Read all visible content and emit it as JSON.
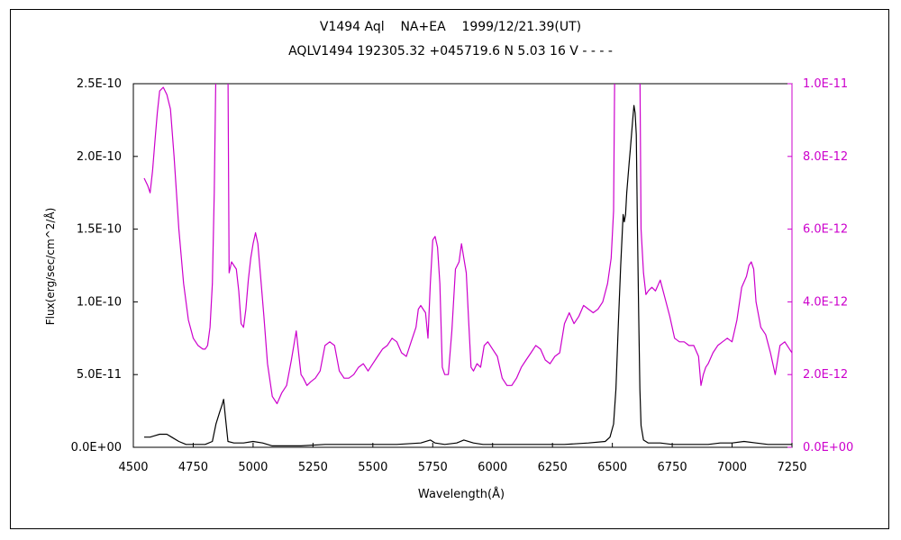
{
  "chart_data": {
    "type": "line",
    "title": "V1494 Aql    NA+EA    1999/12/21.39(UT)",
    "subtitle": "AQLV1494 192305.32 +045719.6 N 5.03 16 V - - - -",
    "xlabel": "Wavelength(Å)",
    "ylabel": "Flux(erg/sec/cm^2/Å)",
    "xlim": [
      4500,
      7250
    ],
    "ylim_left": [
      0,
      2.5e-10
    ],
    "ylim_right": [
      0,
      1e-11
    ],
    "x_ticks": [
      "4500",
      "4750",
      "5000",
      "5250",
      "5500",
      "5750",
      "6000",
      "6250",
      "6500",
      "6750",
      "7000",
      "7250"
    ],
    "y_ticks_left": [
      "0.0E+00",
      "5.0E-11",
      "1.0E-10",
      "1.5E-10",
      "2.0E-10",
      "2.5E-10"
    ],
    "y_ticks_right": [
      "0.0E+00",
      "2.0E-12",
      "4.0E-12",
      "6.0E-12",
      "8.0E-12",
      "1.0E-11"
    ],
    "grid": false,
    "colors": {
      "left_axis": "#000000",
      "right_axis": "#cc00cc"
    },
    "series": [
      {
        "axis": "left",
        "color": "#000000",
        "x": [
          4545,
          4570,
          4590,
          4610,
          4640,
          4660,
          4690,
          4720,
          4760,
          4800,
          4830,
          4845,
          4860,
          4870,
          4877,
          4885,
          4895,
          4920,
          4960,
          5000,
          5040,
          5080,
          5120,
          5200,
          5300,
          5400,
          5500,
          5600,
          5700,
          5740,
          5760,
          5800,
          5850,
          5880,
          5920,
          5960,
          6000,
          6100,
          6200,
          6300,
          6400,
          6470,
          6490,
          6505,
          6515,
          6525,
          6535,
          6545,
          6550,
          6555,
          6560,
          6565,
          6570,
          6575,
          6580,
          6585,
          6590,
          6595,
          6600,
          6605,
          6610,
          6615,
          6620,
          6630,
          6650,
          6700,
          6750,
          6800,
          6850,
          6900,
          6950,
          7000,
          7050,
          7100,
          7150,
          7200,
          7250
        ],
        "y": [
          7e-12,
          7e-12,
          8e-12,
          9e-12,
          9e-12,
          7e-12,
          4e-12,
          2e-12,
          2e-12,
          2e-12,
          4e-12,
          1.6e-11,
          2.4e-11,
          2.9e-11,
          3.3e-11,
          2e-11,
          4e-12,
          3e-12,
          3e-12,
          4e-12,
          3e-12,
          1e-12,
          1e-12,
          1e-12,
          2e-12,
          2e-12,
          2e-12,
          2e-12,
          3e-12,
          5e-12,
          3e-12,
          2e-12,
          3e-12,
          5e-12,
          3e-12,
          2e-12,
          2e-12,
          2e-12,
          2e-12,
          2e-12,
          3e-12,
          4e-12,
          7e-12,
          1.6e-11,
          4e-11,
          8.5e-11,
          1.25e-10,
          1.6e-10,
          1.55e-10,
          1.6e-10,
          1.75e-10,
          1.85e-10,
          1.95e-10,
          2.05e-10,
          2.15e-10,
          2.25e-10,
          2.35e-10,
          2.3e-10,
          2.15e-10,
          1.5e-10,
          9e-11,
          4e-11,
          1.5e-11,
          5e-12,
          3e-12,
          3e-12,
          2e-12,
          2e-12,
          2e-12,
          2e-12,
          3e-12,
          3e-12,
          4e-12,
          3e-12,
          2e-12,
          2e-12,
          2e-12
        ]
      },
      {
        "axis": "right",
        "color": "#cc00cc",
        "x": [
          4545,
          4560,
          4570,
          4580,
          4590,
          4600,
          4610,
          4625,
          4640,
          4655,
          4670,
          4690,
          4710,
          4730,
          4750,
          4770,
          4790,
          4800,
          4810,
          4820,
          4830,
          4838,
          4845,
          4852,
          4858,
          4862,
          4870,
          4880,
          4890,
          4895,
          4900,
          4910,
          4920,
          4930,
          4940,
          4950,
          4960,
          4970,
          4980,
          4990,
          5000,
          5010,
          5020,
          5030,
          5045,
          5060,
          5080,
          5100,
          5120,
          5140,
          5160,
          5170,
          5180,
          5190,
          5200,
          5210,
          5225,
          5240,
          5260,
          5280,
          5300,
          5320,
          5340,
          5360,
          5380,
          5400,
          5420,
          5440,
          5460,
          5480,
          5500,
          5520,
          5540,
          5560,
          5580,
          5600,
          5620,
          5640,
          5660,
          5680,
          5690,
          5700,
          5710,
          5720,
          5730,
          5740,
          5750,
          5760,
          5770,
          5780,
          5790,
          5800,
          5815,
          5830,
          5845,
          5860,
          5870,
          5880,
          5890,
          5900,
          5910,
          5920,
          5935,
          5950,
          5965,
          5980,
          6000,
          6020,
          6040,
          6060,
          6080,
          6100,
          6120,
          6140,
          6160,
          6180,
          6200,
          6220,
          6240,
          6260,
          6280,
          6300,
          6320,
          6340,
          6360,
          6380,
          6400,
          6420,
          6440,
          6460,
          6480,
          6495,
          6505,
          6510,
          6520,
          6530,
          6540,
          6550,
          6560,
          6570,
          6580,
          6590,
          6600,
          6610,
          6615,
          6620,
          6630,
          6640,
          6650,
          6665,
          6680,
          6700,
          6720,
          6740,
          6760,
          6780,
          6800,
          6820,
          6840,
          6860,
          6870,
          6880,
          6890,
          6900,
          6920,
          6940,
          6960,
          6980,
          7000,
          7020,
          7040,
          7060,
          7070,
          7080,
          7090,
          7100,
          7120,
          7140,
          7160,
          7180,
          7200,
          7220,
          7240,
          7250
        ],
        "y": [
          7.4e-12,
          7.2e-12,
          7e-12,
          7.6e-12,
          8.4e-12,
          9.2e-12,
          9.8e-12,
          9.9e-12,
          9.7e-12,
          9.3e-12,
          8e-12,
          6e-12,
          4.5e-12,
          3.5e-12,
          3e-12,
          2.8e-12,
          2.7e-12,
          2.7e-12,
          2.8e-12,
          3.3e-12,
          4.5e-12,
          7e-12,
          1.05e-11,
          1.05e-11,
          1.05e-11,
          1.05e-11,
          1.05e-11,
          1.05e-11,
          1.05e-11,
          1.05e-11,
          4.8e-12,
          5.1e-12,
          5e-12,
          4.9e-12,
          4.3e-12,
          3.4e-12,
          3.3e-12,
          3.8e-12,
          4.6e-12,
          5.2e-12,
          5.6e-12,
          5.9e-12,
          5.6e-12,
          4.8e-12,
          3.6e-12,
          2.3e-12,
          1.4e-12,
          1.2e-12,
          1.5e-12,
          1.7e-12,
          2.4e-12,
          2.8e-12,
          3.2e-12,
          2.6e-12,
          2e-12,
          1.9e-12,
          1.7e-12,
          1.8e-12,
          1.9e-12,
          2.1e-12,
          2.8e-12,
          2.9e-12,
          2.8e-12,
          2.1e-12,
          1.9e-12,
          1.9e-12,
          2e-12,
          2.2e-12,
          2.3e-12,
          2.1e-12,
          2.3e-12,
          2.5e-12,
          2.7e-12,
          2.8e-12,
          3e-12,
          2.9e-12,
          2.6e-12,
          2.5e-12,
          2.9e-12,
          3.3e-12,
          3.8e-12,
          3.9e-12,
          3.8e-12,
          3.7e-12,
          3e-12,
          4.5e-12,
          5.7e-12,
          5.8e-12,
          5.5e-12,
          4.5e-12,
          2.2e-12,
          2e-12,
          2e-12,
          3.2e-12,
          4.9e-12,
          5.1e-12,
          5.6e-12,
          5.2e-12,
          4.8e-12,
          3.5e-12,
          2.2e-12,
          2.1e-12,
          2.3e-12,
          2.2e-12,
          2.8e-12,
          2.9e-12,
          2.7e-12,
          2.5e-12,
          1.9e-12,
          1.7e-12,
          1.7e-12,
          1.9e-12,
          2.2e-12,
          2.4e-12,
          2.6e-12,
          2.8e-12,
          2.7e-12,
          2.4e-12,
          2.3e-12,
          2.5e-12,
          2.6e-12,
          3.4e-12,
          3.7e-12,
          3.4e-12,
          3.6e-12,
          3.9e-12,
          3.8e-12,
          3.7e-12,
          3.8e-12,
          4e-12,
          4.5e-12,
          5.2e-12,
          6.5e-12,
          1.05e-11,
          1.05e-11,
          1.05e-11,
          1.05e-11,
          1.05e-11,
          1.05e-11,
          1.05e-11,
          1.05e-11,
          1.05e-11,
          1.05e-11,
          1.05e-11,
          1.05e-11,
          6e-12,
          4.8e-12,
          4.2e-12,
          4.3e-12,
          4.4e-12,
          4.3e-12,
          4.6e-12,
          4.1e-12,
          3.6e-12,
          3e-12,
          2.9e-12,
          2.9e-12,
          2.8e-12,
          2.8e-12,
          2.5e-12,
          1.7e-12,
          2e-12,
          2.2e-12,
          2.3e-12,
          2.6e-12,
          2.8e-12,
          2.9e-12,
          3e-12,
          2.9e-12,
          3.5e-12,
          4.4e-12,
          4.7e-12,
          5e-12,
          5.1e-12,
          4.9e-12,
          4e-12,
          3.3e-12,
          3.1e-12,
          2.6e-12,
          2e-12,
          2.8e-12,
          2.9e-12,
          2.7e-12,
          2.6e-12
        ]
      }
    ]
  }
}
